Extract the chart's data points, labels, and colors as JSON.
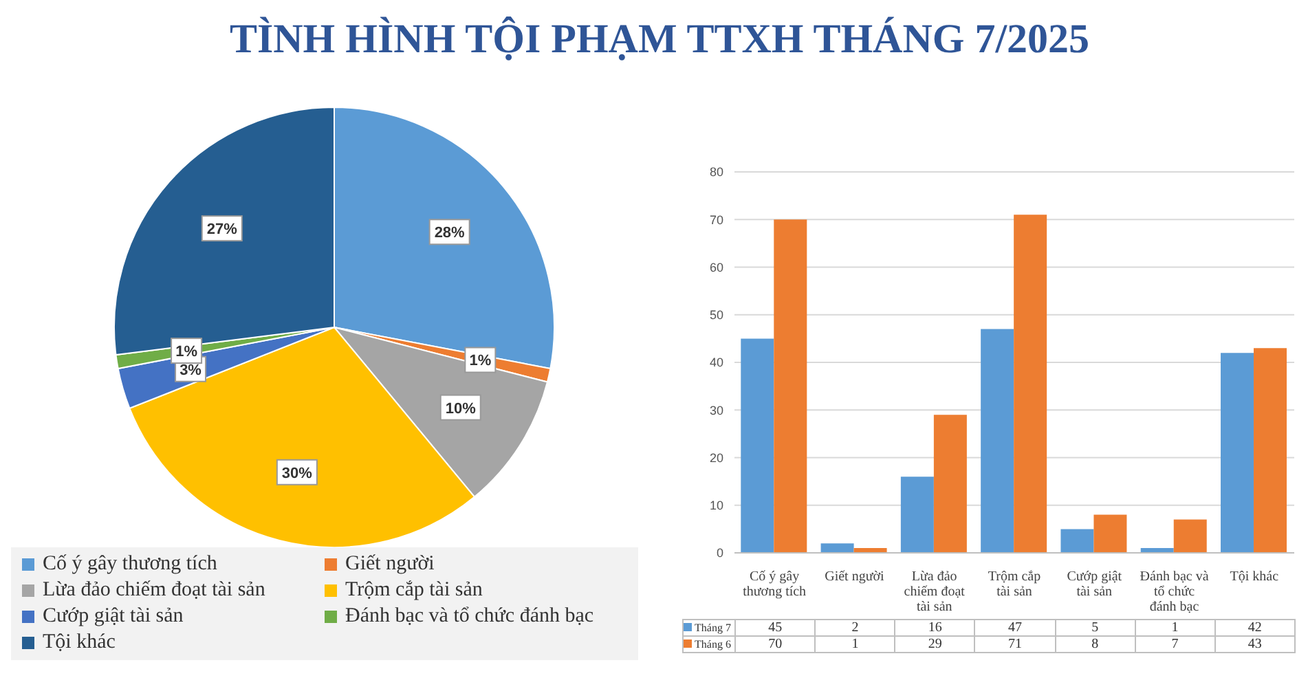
{
  "chart_data": [
    {
      "type": "pie",
      "title": "TÌNH HÌNH TỘI PHẠM TTXH THÁNG 7/2025",
      "categories": [
        "Cố ý gây thương tích",
        "Giết người",
        "Lừa đảo chiếm đoạt tài sản",
        "Trộm cắp tài sản",
        "Cướp giật tài sản",
        "Đánh bạc và tổ chức đánh bạc",
        "Tội khác"
      ],
      "values": [
        28,
        1,
        10,
        30,
        3,
        1,
        27
      ],
      "value_labels": [
        "28%",
        "1%",
        "10%",
        "30%",
        "3%",
        "1%",
        "27%"
      ],
      "colors": [
        "#5b9bd5",
        "#ed7d31",
        "#a5a5a5",
        "#ffc000",
        "#4472c4",
        "#70ad47",
        "#255e91"
      ],
      "legend": "bottom"
    },
    {
      "type": "bar",
      "categories": [
        "Cố ý gây thương tích",
        "Giết người",
        "Lừa đảo chiếm đoạt tài sản",
        "Trộm cắp tài sản",
        "Cướp giật tài sản",
        "Đánh bạc và tổ chức đánh bạc",
        "Tội khác"
      ],
      "series": [
        {
          "name": "Tháng 7",
          "color": "#5b9bd5",
          "values": [
            45,
            2,
            16,
            47,
            5,
            1,
            42
          ]
        },
        {
          "name": "Tháng 6",
          "color": "#ed7d31",
          "values": [
            70,
            1,
            29,
            71,
            8,
            7,
            43
          ]
        }
      ],
      "ylim": [
        0,
        80
      ],
      "yticks": [
        0,
        10,
        20,
        30,
        40,
        50,
        60,
        70,
        80
      ],
      "grid": "y",
      "legend": "bottom",
      "data_labels": true
    }
  ]
}
